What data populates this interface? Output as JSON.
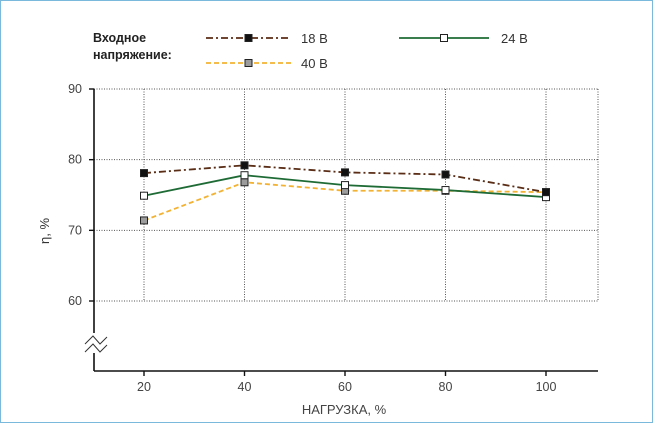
{
  "chart_data": {
    "type": "line",
    "legend_title": "Входное напряжение:",
    "legend_title_lines": [
      "Входное",
      "напряжение:"
    ],
    "ylabel": "η, %",
    "xlabel": "НАГРУЗКА, %",
    "x": [
      20,
      40,
      60,
      80,
      100
    ],
    "x_ticks": [
      "20",
      "40",
      "60",
      "80",
      "100"
    ],
    "y_ticks": [
      "90",
      "80",
      "70",
      "60"
    ],
    "y_tick_values": [
      90,
      80,
      70,
      60
    ],
    "ylim": [
      60,
      90
    ],
    "y_axis_break": true,
    "grid": "dotted",
    "legend_position": "top",
    "series": [
      {
        "name": "18 В",
        "values": [
          78.1,
          79.2,
          78.2,
          77.9,
          75.4
        ],
        "color": "#5a2d16",
        "dash": "dash-dot",
        "marker": "filled-square",
        "marker_color": "#111111"
      },
      {
        "name": "24 В",
        "values": [
          74.9,
          77.8,
          76.4,
          75.7,
          74.7
        ],
        "color": "#1e6b35",
        "dash": "solid",
        "marker": "open-square",
        "marker_color": "#ffffff"
      },
      {
        "name": "40 В",
        "values": [
          71.4,
          76.8,
          75.6,
          75.6,
          75.4
        ],
        "color": "#f2b233",
        "dash": "dashed",
        "marker": "grey-square",
        "marker_color": "#9c9c9c"
      }
    ],
    "frame_color": "#7ab8dc"
  }
}
